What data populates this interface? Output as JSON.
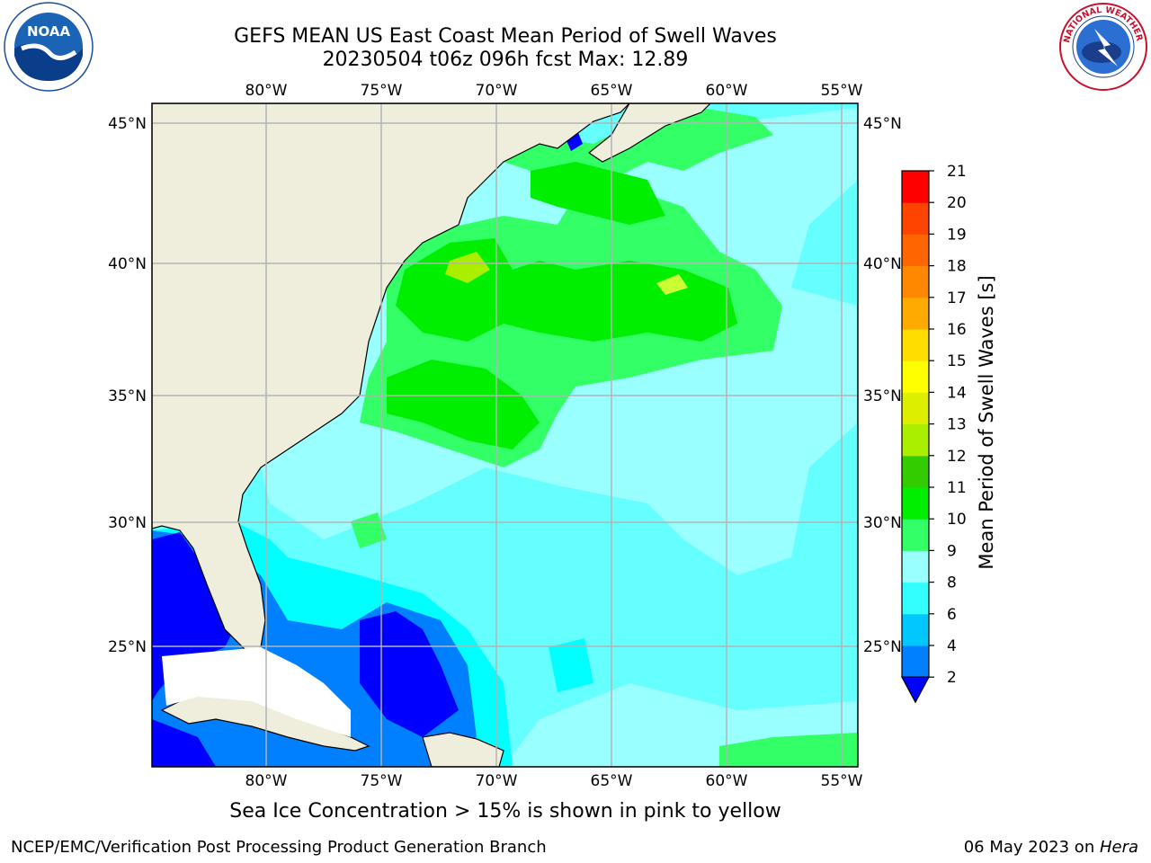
{
  "header": {
    "title_line1": "GEFS MEAN US East Coast Mean Period of Swell Waves",
    "title_line2": "20230504 t06z 096h fcst   Max: 12.89"
  },
  "logos": {
    "left": "noaa-logo",
    "left_text": "NOAA",
    "right": "nws-logo",
    "right_text": "NATIONAL WEATHER SERVICE"
  },
  "map": {
    "lon_labels": [
      "80°W",
      "75°W",
      "70°W",
      "65°W",
      "60°W",
      "55°W"
    ],
    "lat_labels": [
      "45°N",
      "40°N",
      "35°N",
      "30°N",
      "25°N"
    ],
    "ocean_color": "#66ffff",
    "land_color": "#efeedc",
    "grid_color": "#b4b4b4"
  },
  "colorbar": {
    "title": "Mean Period of Swell Waves [s]",
    "ticks": [
      "2",
      "4",
      "6",
      "8",
      "9",
      "10",
      "11",
      "12",
      "13",
      "14",
      "15",
      "16",
      "17",
      "18",
      "19",
      "20",
      "21"
    ],
    "colors": [
      "#0080ff",
      "#00c8ff",
      "#33ffff",
      "#99ffff",
      "#33ff66",
      "#00ee00",
      "#33cc00",
      "#aaee00",
      "#ddee00",
      "#ffff00",
      "#ffdd00",
      "#ffaa00",
      "#ff8800",
      "#ff6600",
      "#ff4400",
      "#ff0000"
    ],
    "under_color": "#0000ff"
  },
  "subtitle": "Sea Ice Concentration > 15% is shown in pink to yellow",
  "footer": {
    "left": "NCEP/EMC/Verification Post Processing Product Generation Branch",
    "right_date": "06 May 2023 on ",
    "right_host": "Hera"
  }
}
